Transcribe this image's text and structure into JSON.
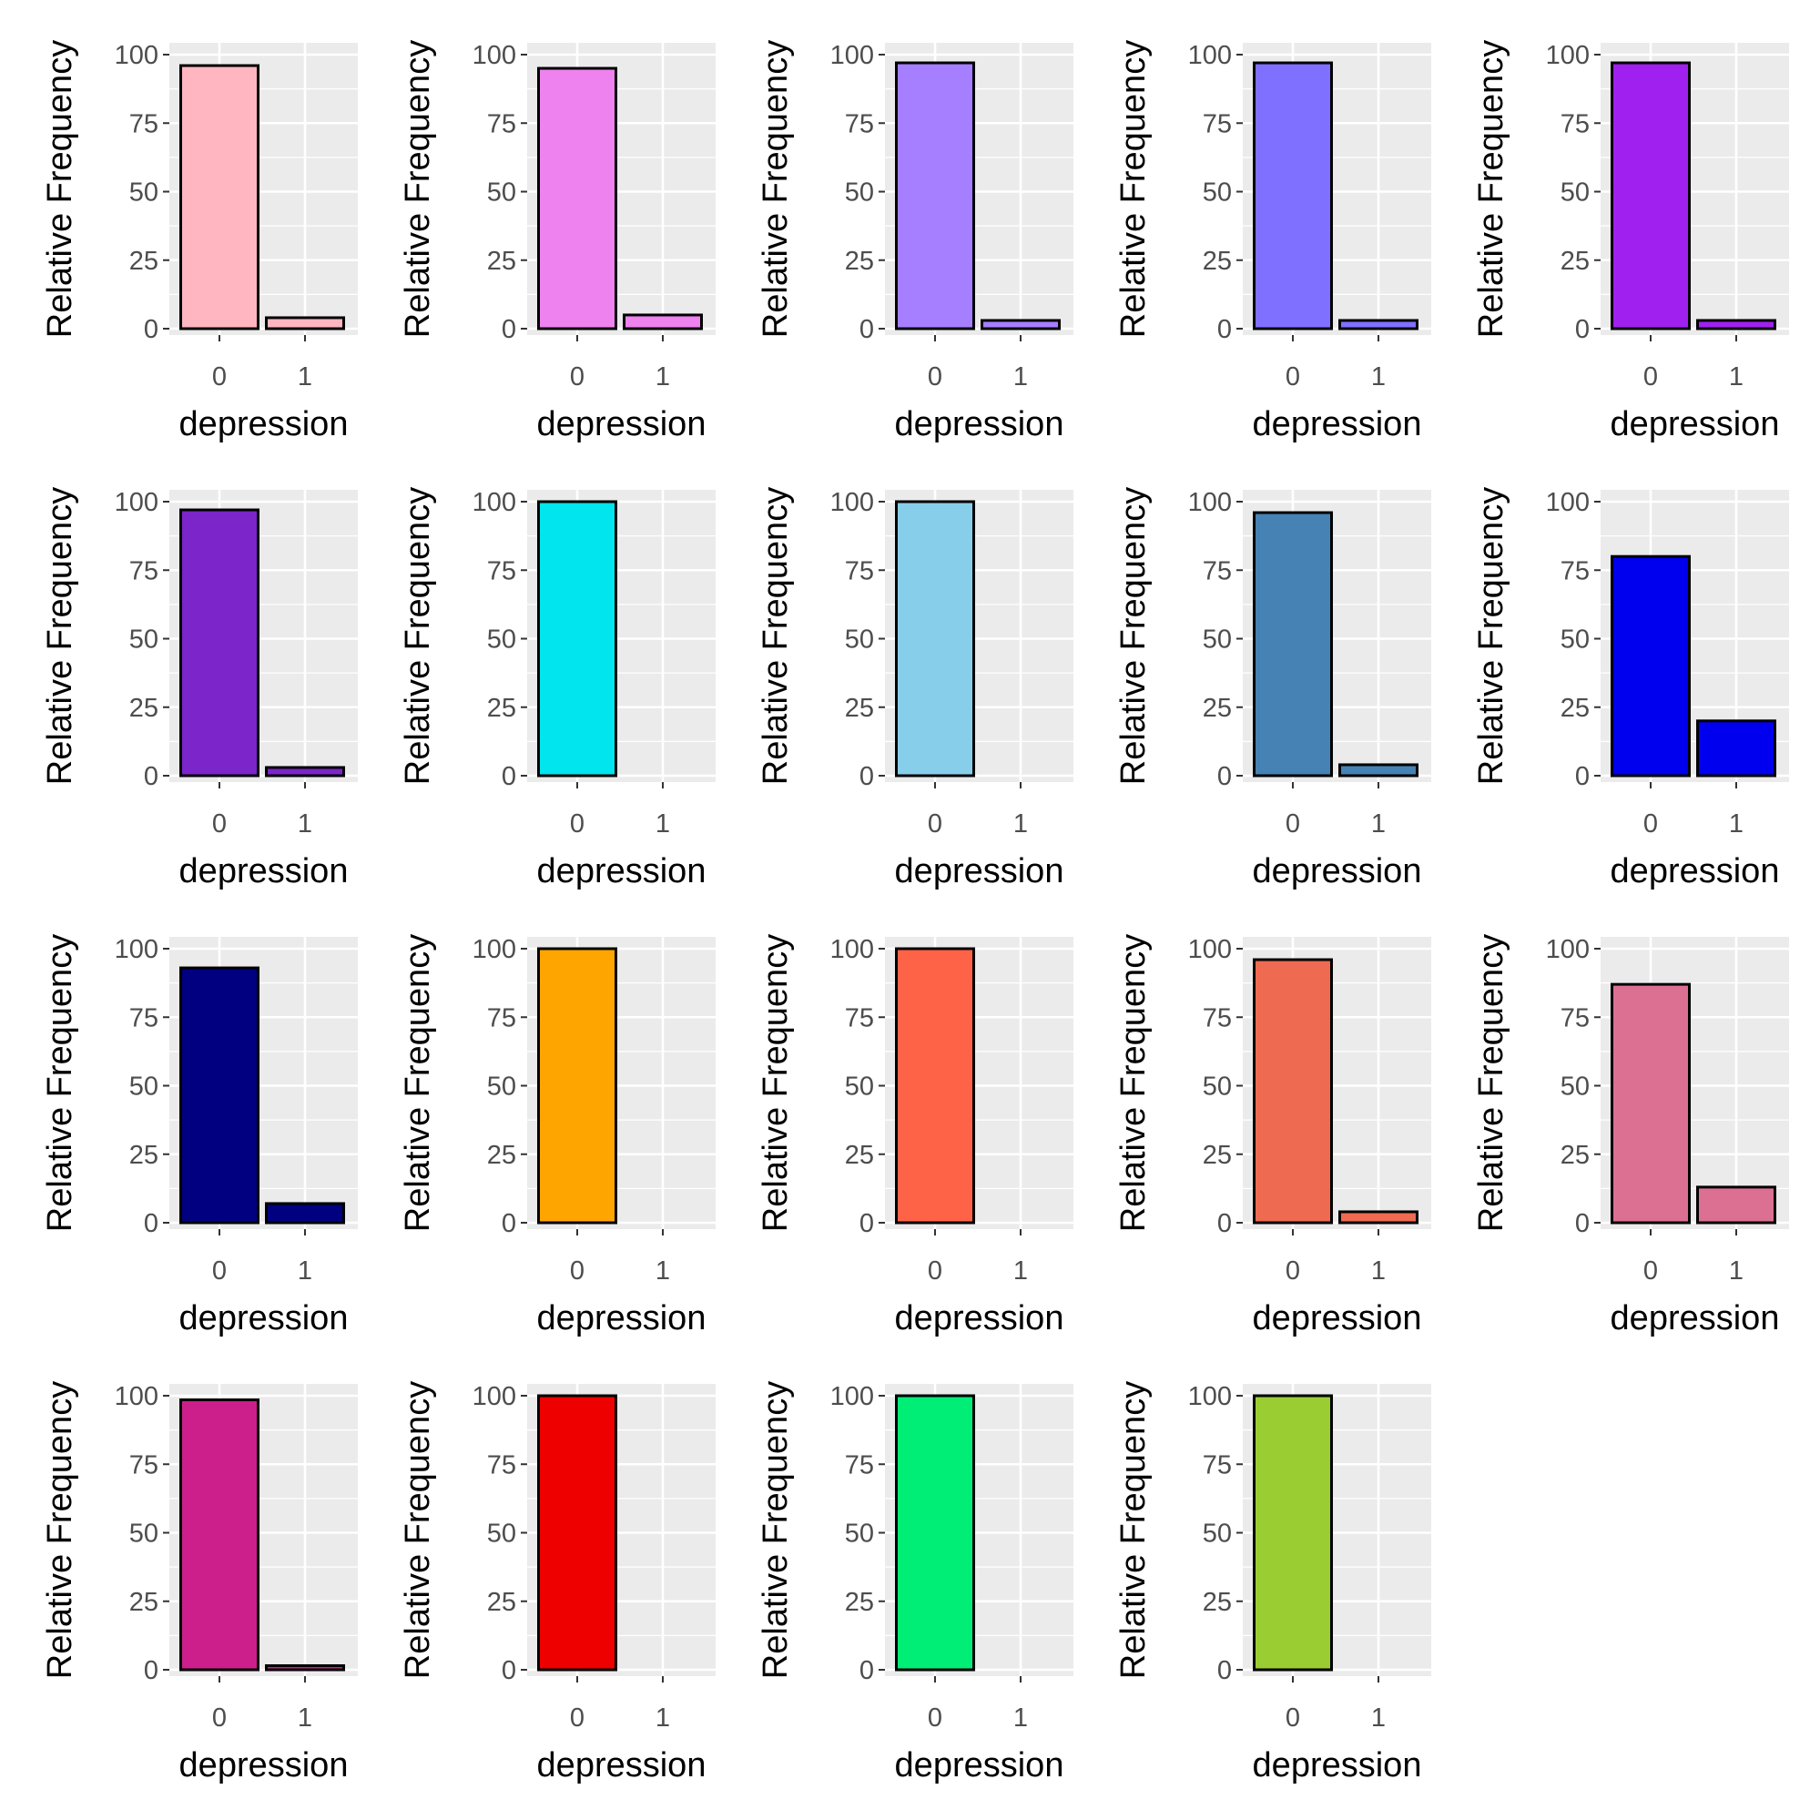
{
  "chart_data": [
    {
      "type": "bar",
      "categories": [
        "0",
        "1"
      ],
      "values": [
        96,
        4
      ],
      "fill": "#FFB6C1",
      "xlabel": "depression",
      "ylabel": "Relative Frequency",
      "yticks": [
        "0",
        "25",
        "50",
        "75",
        "100"
      ],
      "ylim": [
        0,
        100
      ]
    },
    {
      "type": "bar",
      "categories": [
        "0",
        "1"
      ],
      "values": [
        95,
        5
      ],
      "fill": "#EE82EE",
      "xlabel": "depression",
      "ylabel": "Relative Frequency",
      "yticks": [
        "0",
        "25",
        "50",
        "75",
        "100"
      ],
      "ylim": [
        0,
        100
      ]
    },
    {
      "type": "bar",
      "categories": [
        "0",
        "1"
      ],
      "values": [
        97,
        3
      ],
      "fill": "#A57FFF",
      "xlabel": "depression",
      "ylabel": "Relative Frequency",
      "yticks": [
        "0",
        "25",
        "50",
        "75",
        "100"
      ],
      "ylim": [
        0,
        100
      ]
    },
    {
      "type": "bar",
      "categories": [
        "0",
        "1"
      ],
      "values": [
        97,
        3
      ],
      "fill": "#7F70FF",
      "xlabel": "depression",
      "ylabel": "Relative Frequency",
      "yticks": [
        "0",
        "25",
        "50",
        "75",
        "100"
      ],
      "ylim": [
        0,
        100
      ]
    },
    {
      "type": "bar",
      "categories": [
        "0",
        "1"
      ],
      "values": [
        97,
        3
      ],
      "fill": "#A020F0",
      "xlabel": "depression",
      "ylabel": "Relative Frequency",
      "yticks": [
        "0",
        "25",
        "50",
        "75",
        "100"
      ],
      "ylim": [
        0,
        100
      ]
    },
    {
      "type": "bar",
      "categories": [
        "0",
        "1"
      ],
      "values": [
        97,
        3
      ],
      "fill": "#7B25CB",
      "xlabel": "depression",
      "ylabel": "Relative Frequency",
      "yticks": [
        "0",
        "25",
        "50",
        "75",
        "100"
      ],
      "ylim": [
        0,
        100
      ]
    },
    {
      "type": "bar",
      "categories": [
        "0",
        "1"
      ],
      "values": [
        100,
        0
      ],
      "fill": "#00E5EE",
      "xlabel": "depression",
      "ylabel": "Relative Frequency",
      "yticks": [
        "0",
        "25",
        "50",
        "75",
        "100"
      ],
      "ylim": [
        0,
        100
      ]
    },
    {
      "type": "bar",
      "categories": [
        "0",
        "1"
      ],
      "values": [
        100,
        0
      ],
      "fill": "#87CEEB",
      "xlabel": "depression",
      "ylabel": "Relative Frequency",
      "yticks": [
        "0",
        "25",
        "50",
        "75",
        "100"
      ],
      "ylim": [
        0,
        100
      ]
    },
    {
      "type": "bar",
      "categories": [
        "0",
        "1"
      ],
      "values": [
        96,
        4
      ],
      "fill": "#4682B4",
      "xlabel": "depression",
      "ylabel": "Relative Frequency",
      "yticks": [
        "0",
        "25",
        "50",
        "75",
        "100"
      ],
      "ylim": [
        0,
        100
      ]
    },
    {
      "type": "bar",
      "categories": [
        "0",
        "1"
      ],
      "values": [
        80,
        20
      ],
      "fill": "#0000EE",
      "xlabel": "depression",
      "ylabel": "Relative Frequency",
      "yticks": [
        "0",
        "25",
        "50",
        "75",
        "100"
      ],
      "ylim": [
        0,
        100
      ]
    },
    {
      "type": "bar",
      "categories": [
        "0",
        "1"
      ],
      "values": [
        93,
        7
      ],
      "fill": "#000080",
      "xlabel": "depression",
      "ylabel": "Relative Frequency",
      "yticks": [
        "0",
        "25",
        "50",
        "75",
        "100"
      ],
      "ylim": [
        0,
        100
      ]
    },
    {
      "type": "bar",
      "categories": [
        "0",
        "1"
      ],
      "values": [
        100,
        0
      ],
      "fill": "#FFA500",
      "xlabel": "depression",
      "ylabel": "Relative Frequency",
      "yticks": [
        "0",
        "25",
        "50",
        "75",
        "100"
      ],
      "ylim": [
        0,
        100
      ]
    },
    {
      "type": "bar",
      "categories": [
        "0",
        "1"
      ],
      "values": [
        100,
        0
      ],
      "fill": "#FF6347",
      "xlabel": "depression",
      "ylabel": "Relative Frequency",
      "yticks": [
        "0",
        "25",
        "50",
        "75",
        "100"
      ],
      "ylim": [
        0,
        100
      ]
    },
    {
      "type": "bar",
      "categories": [
        "0",
        "1"
      ],
      "values": [
        96,
        4
      ],
      "fill": "#EE6A50",
      "xlabel": "depression",
      "ylabel": "Relative Frequency",
      "yticks": [
        "0",
        "25",
        "50",
        "75",
        "100"
      ],
      "ylim": [
        0,
        100
      ]
    },
    {
      "type": "bar",
      "categories": [
        "0",
        "1"
      ],
      "values": [
        87,
        13
      ],
      "fill": "#DB7093",
      "xlabel": "depression",
      "ylabel": "Relative Frequency",
      "yticks": [
        "0",
        "25",
        "50",
        "75",
        "100"
      ],
      "ylim": [
        0,
        100
      ]
    },
    {
      "type": "bar",
      "categories": [
        "0",
        "1"
      ],
      "values": [
        98.5,
        1.5
      ],
      "fill": "#CD1F8C",
      "xlabel": "depression",
      "ylabel": "Relative Frequency",
      "yticks": [
        "0",
        "25",
        "50",
        "75",
        "100"
      ],
      "ylim": [
        0,
        100
      ]
    },
    {
      "type": "bar",
      "categories": [
        "0",
        "1"
      ],
      "values": [
        100,
        0
      ],
      "fill": "#EE0000",
      "xlabel": "depression",
      "ylabel": "Relative Frequency",
      "yticks": [
        "0",
        "25",
        "50",
        "75",
        "100"
      ],
      "ylim": [
        0,
        100
      ]
    },
    {
      "type": "bar",
      "categories": [
        "0",
        "1"
      ],
      "values": [
        100,
        0
      ],
      "fill": "#00EE76",
      "xlabel": "depression",
      "ylabel": "Relative Frequency",
      "yticks": [
        "0",
        "25",
        "50",
        "75",
        "100"
      ],
      "ylim": [
        0,
        100
      ]
    },
    {
      "type": "bar",
      "categories": [
        "0",
        "1"
      ],
      "values": [
        100,
        0
      ],
      "fill": "#9ACD32",
      "xlabel": "depression",
      "ylabel": "Relative Frequency",
      "yticks": [
        "0",
        "25",
        "50",
        "75",
        "100"
      ],
      "ylim": [
        0,
        100
      ]
    }
  ]
}
